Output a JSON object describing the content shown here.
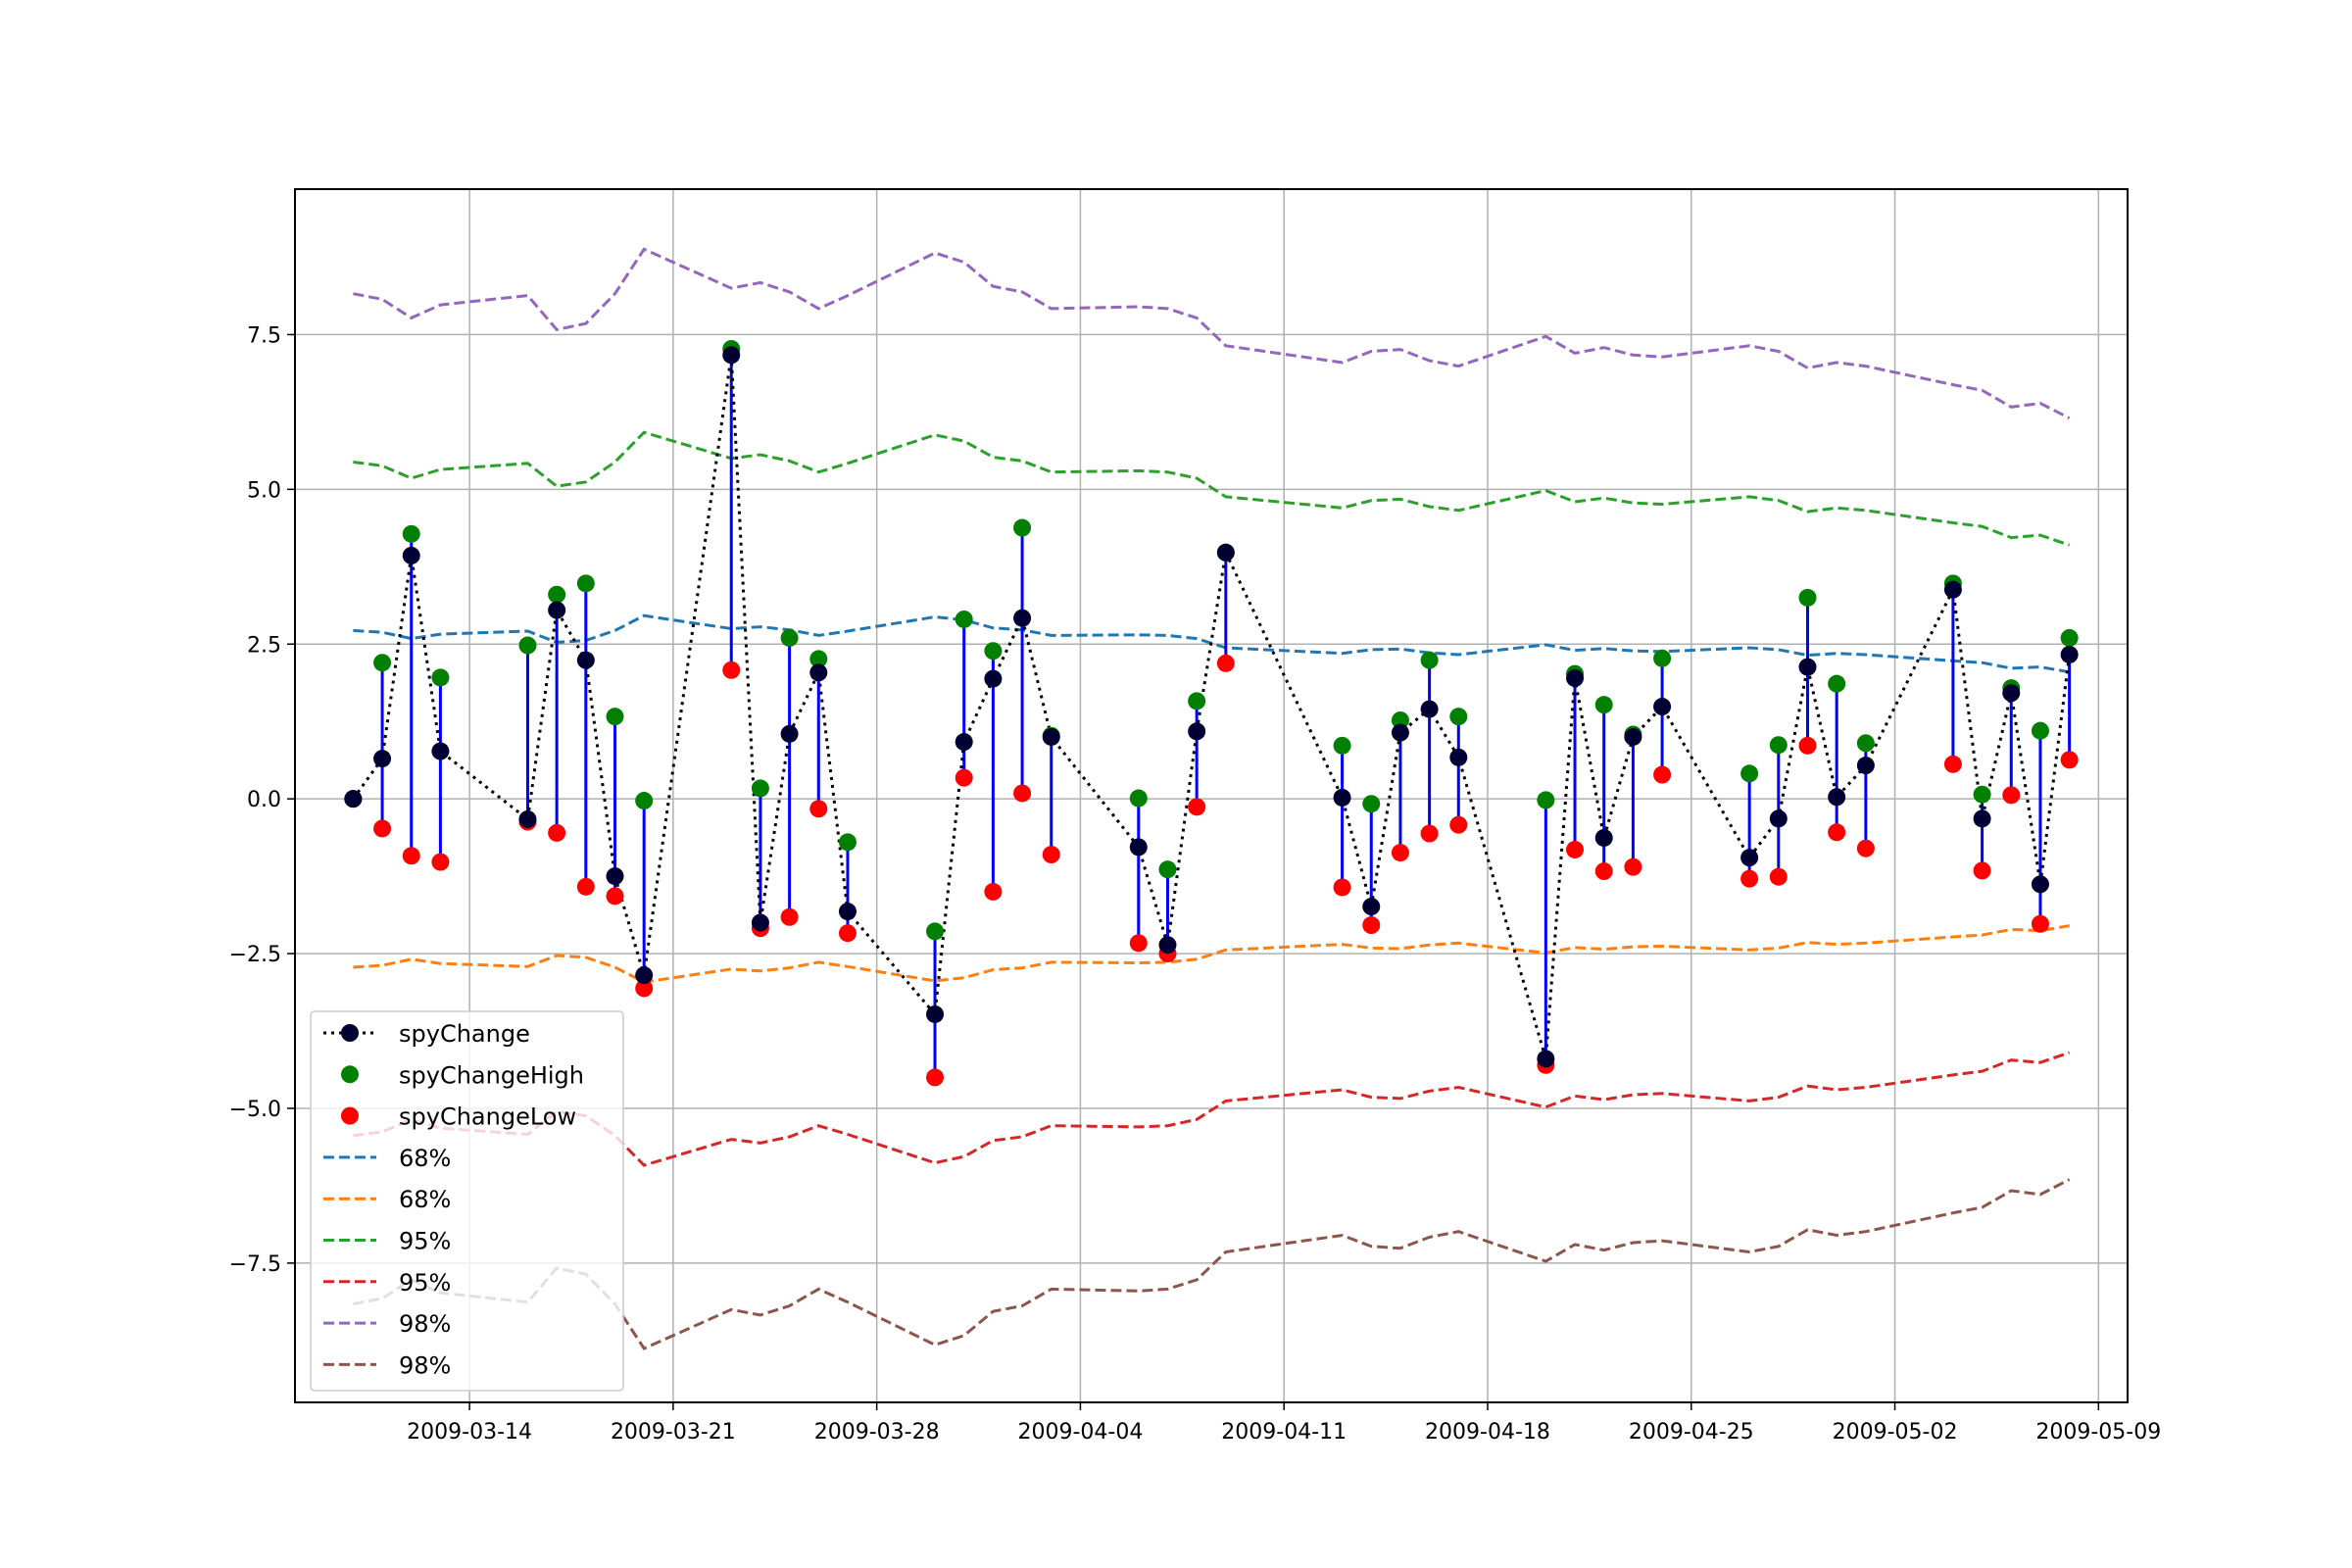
{
  "chart_data": {
    "type": "line",
    "title": "",
    "xlabel": "",
    "ylabel": "",
    "x_type": "date",
    "xlim": [
      "2009-03-08",
      "2009-05-10"
    ],
    "ylim": [
      -9.75,
      9.85
    ],
    "grid": true,
    "legend_placement": "lower-left",
    "x_tick_labels": [
      "2009-03-14",
      "2009-03-21",
      "2009-03-28",
      "2009-04-04",
      "2009-04-11",
      "2009-04-18",
      "2009-04-25",
      "2009-05-02",
      "2009-05-09"
    ],
    "y_ticks": [
      -7.5,
      -5.0,
      -2.5,
      0.0,
      2.5,
      5.0,
      7.5
    ],
    "y_tick_labels": [
      "−7.5",
      "−5.0",
      "−2.5",
      "0.0",
      "2.5",
      "5.0",
      "7.5"
    ],
    "dates": [
      "2009-03-10",
      "2009-03-11",
      "2009-03-12",
      "2009-03-13",
      "2009-03-16",
      "2009-03-17",
      "2009-03-18",
      "2009-03-19",
      "2009-03-20",
      "2009-03-23",
      "2009-03-24",
      "2009-03-25",
      "2009-03-26",
      "2009-03-27",
      "2009-03-30",
      "2009-03-31",
      "2009-04-01",
      "2009-04-02",
      "2009-04-03",
      "2009-04-06",
      "2009-04-07",
      "2009-04-08",
      "2009-04-09",
      "2009-04-13",
      "2009-04-14",
      "2009-04-15",
      "2009-04-16",
      "2009-04-17",
      "2009-04-20",
      "2009-04-21",
      "2009-04-22",
      "2009-04-23",
      "2009-04-24",
      "2009-04-27",
      "2009-04-28",
      "2009-04-29",
      "2009-04-30",
      "2009-05-01",
      "2009-05-04",
      "2009-05-05",
      "2009-05-06",
      "2009-05-07",
      "2009-05-08"
    ],
    "series": [
      {
        "name": "spyChange",
        "kind": "line-marker",
        "color": "#000000",
        "marker_color": "#000033",
        "values": [
          0.0,
          0.65,
          3.93,
          0.77,
          -0.33,
          3.05,
          2.24,
          -1.25,
          -2.85,
          7.17,
          -2.0,
          1.05,
          2.04,
          -1.82,
          -3.48,
          0.92,
          1.94,
          2.92,
          1.0,
          -0.78,
          -2.36,
          1.09,
          3.98,
          0.02,
          -1.74,
          1.07,
          1.45,
          0.67,
          -4.2,
          1.95,
          -0.63,
          1.0,
          1.49,
          -0.95,
          -0.32,
          2.13,
          0.03,
          0.54,
          3.38,
          -0.32,
          1.71,
          -1.38,
          2.33
        ]
      },
      {
        "name": "spyChangeHigh",
        "kind": "marker",
        "color": "#008000",
        "values": [
          0.0,
          2.2,
          4.28,
          1.96,
          2.48,
          3.3,
          3.48,
          1.33,
          -0.03,
          7.27,
          0.17,
          2.6,
          2.26,
          -0.7,
          -2.14,
          2.9,
          2.39,
          4.38,
          1.02,
          0.01,
          -1.14,
          1.58,
          3.98,
          0.86,
          -0.08,
          1.27,
          2.24,
          1.33,
          -0.02,
          2.02,
          1.52,
          1.04,
          2.27,
          0.41,
          0.87,
          3.25,
          1.86,
          0.9,
          3.48,
          0.07,
          1.79,
          1.1,
          2.6
        ]
      },
      {
        "name": "spyChangeLow",
        "kind": "marker",
        "color": "#ff0000",
        "values": [
          0.0,
          -0.48,
          -0.92,
          -1.02,
          -0.37,
          -0.55,
          -1.42,
          -1.57,
          -3.06,
          2.08,
          -2.09,
          -1.91,
          -0.16,
          -2.17,
          -4.5,
          0.34,
          -1.5,
          0.09,
          -0.9,
          -2.33,
          -2.5,
          -0.13,
          2.19,
          -1.43,
          -2.04,
          -0.87,
          -0.56,
          -0.42,
          -4.3,
          -0.82,
          -1.17,
          -1.1,
          0.39,
          -1.29,
          -1.26,
          0.86,
          -0.54,
          -0.8,
          0.56,
          -1.16,
          0.06,
          -2.02,
          0.63
        ]
      },
      {
        "name": "68%",
        "kind": "dashed",
        "color": "#1f77b4",
        "values": [
          2.72,
          2.69,
          2.59,
          2.66,
          2.71,
          2.53,
          2.56,
          2.72,
          2.96,
          2.75,
          2.78,
          2.73,
          2.64,
          2.71,
          2.94,
          2.89,
          2.76,
          2.73,
          2.64,
          2.65,
          2.64,
          2.59,
          2.44,
          2.35,
          2.41,
          2.42,
          2.36,
          2.33,
          2.49,
          2.4,
          2.43,
          2.39,
          2.38,
          2.44,
          2.41,
          2.32,
          2.35,
          2.33,
          2.23,
          2.2,
          2.11,
          2.13,
          2.05
        ]
      },
      {
        "name": "68%",
        "kind": "dashed",
        "color": "#ff7f0e",
        "values": [
          -2.72,
          -2.69,
          -2.59,
          -2.66,
          -2.71,
          -2.53,
          -2.56,
          -2.72,
          -2.96,
          -2.75,
          -2.78,
          -2.73,
          -2.64,
          -2.71,
          -2.94,
          -2.89,
          -2.76,
          -2.73,
          -2.64,
          -2.65,
          -2.64,
          -2.59,
          -2.44,
          -2.35,
          -2.41,
          -2.42,
          -2.36,
          -2.33,
          -2.49,
          -2.4,
          -2.43,
          -2.39,
          -2.38,
          -2.44,
          -2.41,
          -2.32,
          -2.35,
          -2.33,
          -2.23,
          -2.2,
          -2.11,
          -2.13,
          -2.05
        ]
      },
      {
        "name": "95%",
        "kind": "dashed",
        "color": "#2ca02c",
        "values": [
          5.44,
          5.38,
          5.18,
          5.32,
          5.42,
          5.05,
          5.12,
          5.44,
          5.92,
          5.5,
          5.56,
          5.46,
          5.28,
          5.42,
          5.88,
          5.78,
          5.52,
          5.46,
          5.28,
          5.3,
          5.28,
          5.18,
          4.88,
          4.7,
          4.82,
          4.84,
          4.72,
          4.66,
          4.98,
          4.8,
          4.86,
          4.78,
          4.76,
          4.88,
          4.82,
          4.64,
          4.7,
          4.66,
          4.46,
          4.4,
          4.22,
          4.26,
          4.1
        ]
      },
      {
        "name": "95%",
        "kind": "dashed",
        "color": "#d62728",
        "values": [
          -5.44,
          -5.38,
          -5.18,
          -5.32,
          -5.42,
          -5.05,
          -5.12,
          -5.44,
          -5.92,
          -5.5,
          -5.56,
          -5.46,
          -5.28,
          -5.42,
          -5.88,
          -5.78,
          -5.52,
          -5.46,
          -5.28,
          -5.3,
          -5.28,
          -5.18,
          -4.88,
          -4.7,
          -4.82,
          -4.84,
          -4.72,
          -4.66,
          -4.98,
          -4.8,
          -4.86,
          -4.78,
          -4.76,
          -4.88,
          -4.82,
          -4.64,
          -4.7,
          -4.66,
          -4.46,
          -4.4,
          -4.22,
          -4.26,
          -4.1
        ]
      },
      {
        "name": "98%",
        "kind": "dashed",
        "color": "#9467bd",
        "values": [
          8.16,
          8.07,
          7.77,
          7.98,
          8.13,
          7.58,
          7.68,
          8.16,
          8.88,
          8.25,
          8.34,
          8.19,
          7.92,
          8.13,
          8.82,
          8.67,
          8.28,
          8.19,
          7.92,
          7.95,
          7.92,
          7.77,
          7.32,
          7.05,
          7.23,
          7.26,
          7.08,
          6.99,
          7.47,
          7.2,
          7.29,
          7.17,
          7.14,
          7.32,
          7.23,
          6.96,
          7.05,
          6.99,
          6.69,
          6.6,
          6.33,
          6.39,
          6.15
        ]
      },
      {
        "name": "98%",
        "kind": "dashed",
        "color": "#8c564b",
        "values": [
          -8.16,
          -8.07,
          -7.77,
          -7.98,
          -8.13,
          -7.58,
          -7.68,
          -8.16,
          -8.88,
          -8.25,
          -8.34,
          -8.19,
          -7.92,
          -8.13,
          -8.82,
          -8.67,
          -8.28,
          -8.19,
          -7.92,
          -7.95,
          -7.92,
          -7.77,
          -7.32,
          -7.05,
          -7.23,
          -7.26,
          -7.08,
          -6.99,
          -7.47,
          -7.2,
          -7.29,
          -7.17,
          -7.14,
          -7.32,
          -7.23,
          -6.96,
          -7.05,
          -6.99,
          -6.69,
          -6.6,
          -6.33,
          -6.39,
          -6.15
        ]
      }
    ],
    "range_bar_color": "#0000ff",
    "legend": [
      "spyChange",
      "spyChangeHigh",
      "spyChangeLow",
      "68%",
      "68%",
      "95%",
      "95%",
      "98%",
      "98%"
    ]
  }
}
